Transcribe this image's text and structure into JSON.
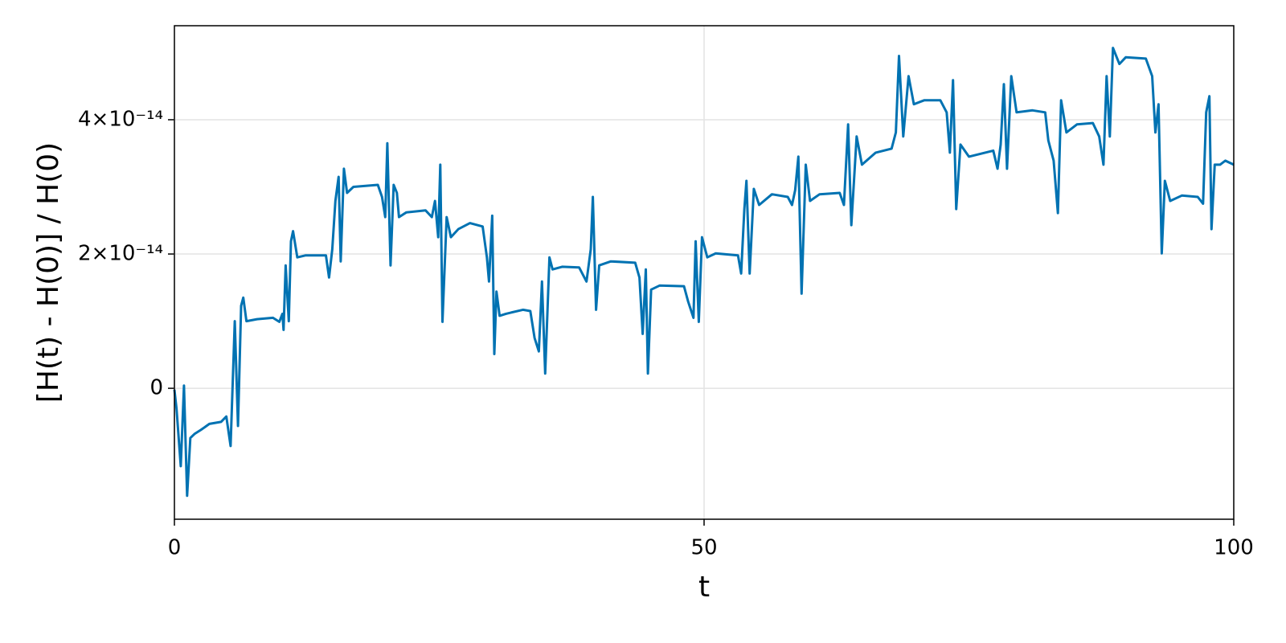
{
  "chart_data": {
    "type": "line",
    "xlabel": "t",
    "ylabel": "[H(t) - H(0)] / H(0)",
    "color": "#0072b2",
    "grid": true,
    "xlim": [
      0,
      100
    ],
    "xticks": [
      0,
      50,
      100
    ],
    "ylim": [
      -1.95e-14,
      5.4e-14
    ],
    "yticks": [
      0,
      {
        "value": 2e-14,
        "label": "2×10⁻¹⁴"
      },
      {
        "value": 4e-14,
        "label": "4×10⁻¹⁴"
      }
    ],
    "x": [
      0,
      0.2,
      0.6,
      0.9,
      1.2,
      1.5,
      1.9,
      2.5,
      3.3,
      4.4,
      4.9,
      5.3,
      5.7,
      6.0,
      6.3,
      6.5,
      6.8,
      7.8,
      9.3,
      9.9,
      10.2,
      10.3,
      10.5,
      10.8,
      11.0,
      11.2,
      11.6,
      12.4,
      14.3,
      14.6,
      14.9,
      15.2,
      15.5,
      15.7,
      16.0,
      16.3,
      16.9,
      19.2,
      19.6,
      19.9,
      20.1,
      20.4,
      20.7,
      21.0,
      21.2,
      21.9,
      23.7,
      24.3,
      24.6,
      24.9,
      25.1,
      25.3,
      25.7,
      26.1,
      26.8,
      27.9,
      29.1,
      29.5,
      29.7,
      30.0,
      30.2,
      30.4,
      30.7,
      31.3,
      32.9,
      33.6,
      34.0,
      34.4,
      34.7,
      35.0,
      35.4,
      35.7,
      36.6,
      38.2,
      38.9,
      39.3,
      39.5,
      39.8,
      40.1,
      41.2,
      43.5,
      43.9,
      44.2,
      44.5,
      44.7,
      45.0,
      45.8,
      48.1,
      48.5,
      49.0,
      49.2,
      49.5,
      49.8,
      50.3,
      51.1,
      53.2,
      53.5,
      53.8,
      54.0,
      54.3,
      54.7,
      55.2,
      56.4,
      57.9,
      58.3,
      58.6,
      58.9,
      59.2,
      59.6,
      60.0,
      60.9,
      62.8,
      63.2,
      63.6,
      63.9,
      64.4,
      64.9,
      66.2,
      67.7,
      68.1,
      68.4,
      68.8,
      69.3,
      69.8,
      70.8,
      72.3,
      72.9,
      73.2,
      73.5,
      73.8,
      74.2,
      75.0,
      77.3,
      77.7,
      78.0,
      78.3,
      78.6,
      79.0,
      79.5,
      81.0,
      82.2,
      82.5,
      83.0,
      83.4,
      83.7,
      84.2,
      85.2,
      86.7,
      87.3,
      87.7,
      88.0,
      88.3,
      88.6,
      89.2,
      89.8,
      91.7,
      92.3,
      92.6,
      92.9,
      93.2,
      93.5,
      94.0,
      95.1,
      96.6,
      97.1,
      97.4,
      97.7,
      97.9,
      98.2,
      98.7,
      99.2,
      100
    ],
    "values": [
      -2e-16,
      -3e-15,
      -1.16e-14,
      4e-16,
      -1.6e-14,
      -7.4e-15,
      -6.8e-15,
      -6.2e-15,
      -5.3e-15,
      -5e-15,
      -4.2e-15,
      -8.6e-15,
      1e-14,
      -5.6e-15,
      1.23e-14,
      1.35e-14,
      1e-14,
      1.03e-14,
      1.05e-14,
      9.9e-15,
      1.11e-14,
      8.7e-15,
      1.83e-14,
      1e-14,
      2.19e-14,
      2.34e-14,
      1.95e-14,
      1.98e-14,
      1.98e-14,
      1.65e-14,
      2.07e-14,
      2.79e-14,
      3.15e-14,
      1.89e-14,
      3.27e-14,
      2.91e-14,
      3e-14,
      3.03e-14,
      2.85e-14,
      2.55e-14,
      3.65e-14,
      1.83e-14,
      3.03e-14,
      2.91e-14,
      2.55e-14,
      2.62e-14,
      2.65e-14,
      2.55e-14,
      2.79e-14,
      2.25e-14,
      3.33e-14,
      9.9e-15,
      2.55e-14,
      2.25e-14,
      2.37e-14,
      2.46e-14,
      2.41e-14,
      1.95e-14,
      1.59e-14,
      2.57e-14,
      5.1e-15,
      1.44e-14,
      1.08e-14,
      1.11e-14,
      1.17e-14,
      1.15e-14,
      7.5e-15,
      5.5e-15,
      1.59e-14,
      2.2e-15,
      1.95e-14,
      1.77e-14,
      1.81e-14,
      1.8e-14,
      1.59e-14,
      2.07e-14,
      2.85e-14,
      1.17e-14,
      1.83e-14,
      1.89e-14,
      1.87e-14,
      1.65e-14,
      8.1e-15,
      1.77e-14,
      2.2e-15,
      1.47e-14,
      1.53e-14,
      1.52e-14,
      1.29e-14,
      1.05e-14,
      2.19e-14,
      9.9e-15,
      2.25e-14,
      1.95e-14,
      2.01e-14,
      1.98e-14,
      1.71e-14,
      2.67e-14,
      3.09e-14,
      1.71e-14,
      2.97e-14,
      2.73e-14,
      2.89e-14,
      2.85e-14,
      2.73e-14,
      2.95e-14,
      3.45e-14,
      1.41e-14,
      3.33e-14,
      2.79e-14,
      2.89e-14,
      2.91e-14,
      2.73e-14,
      3.93e-14,
      2.43e-14,
      3.75e-14,
      3.33e-14,
      3.51e-14,
      3.57e-14,
      3.81e-14,
      4.95e-14,
      3.75e-14,
      4.65e-14,
      4.23e-14,
      4.29e-14,
      4.29e-14,
      4.11e-14,
      3.51e-14,
      4.59e-14,
      2.67e-14,
      3.63e-14,
      3.45e-14,
      3.54e-14,
      3.27e-14,
      3.63e-14,
      4.53e-14,
      3.27e-14,
      4.65e-14,
      4.11e-14,
      4.14e-14,
      4.11e-14,
      3.69e-14,
      3.39e-14,
      2.61e-14,
      4.29e-14,
      3.81e-14,
      3.93e-14,
      3.95e-14,
      3.75e-14,
      3.33e-14,
      4.65e-14,
      3.75e-14,
      5.07e-14,
      4.83e-14,
      4.93e-14,
      4.91e-14,
      4.65e-14,
      3.81e-14,
      4.23e-14,
      2.01e-14,
      3.09e-14,
      2.79e-14,
      2.87e-14,
      2.85e-14,
      2.75e-14,
      4.11e-14,
      4.35e-14,
      2.37e-14,
      3.33e-14,
      3.33e-14,
      3.39e-14,
      3.33e-14
    ]
  }
}
